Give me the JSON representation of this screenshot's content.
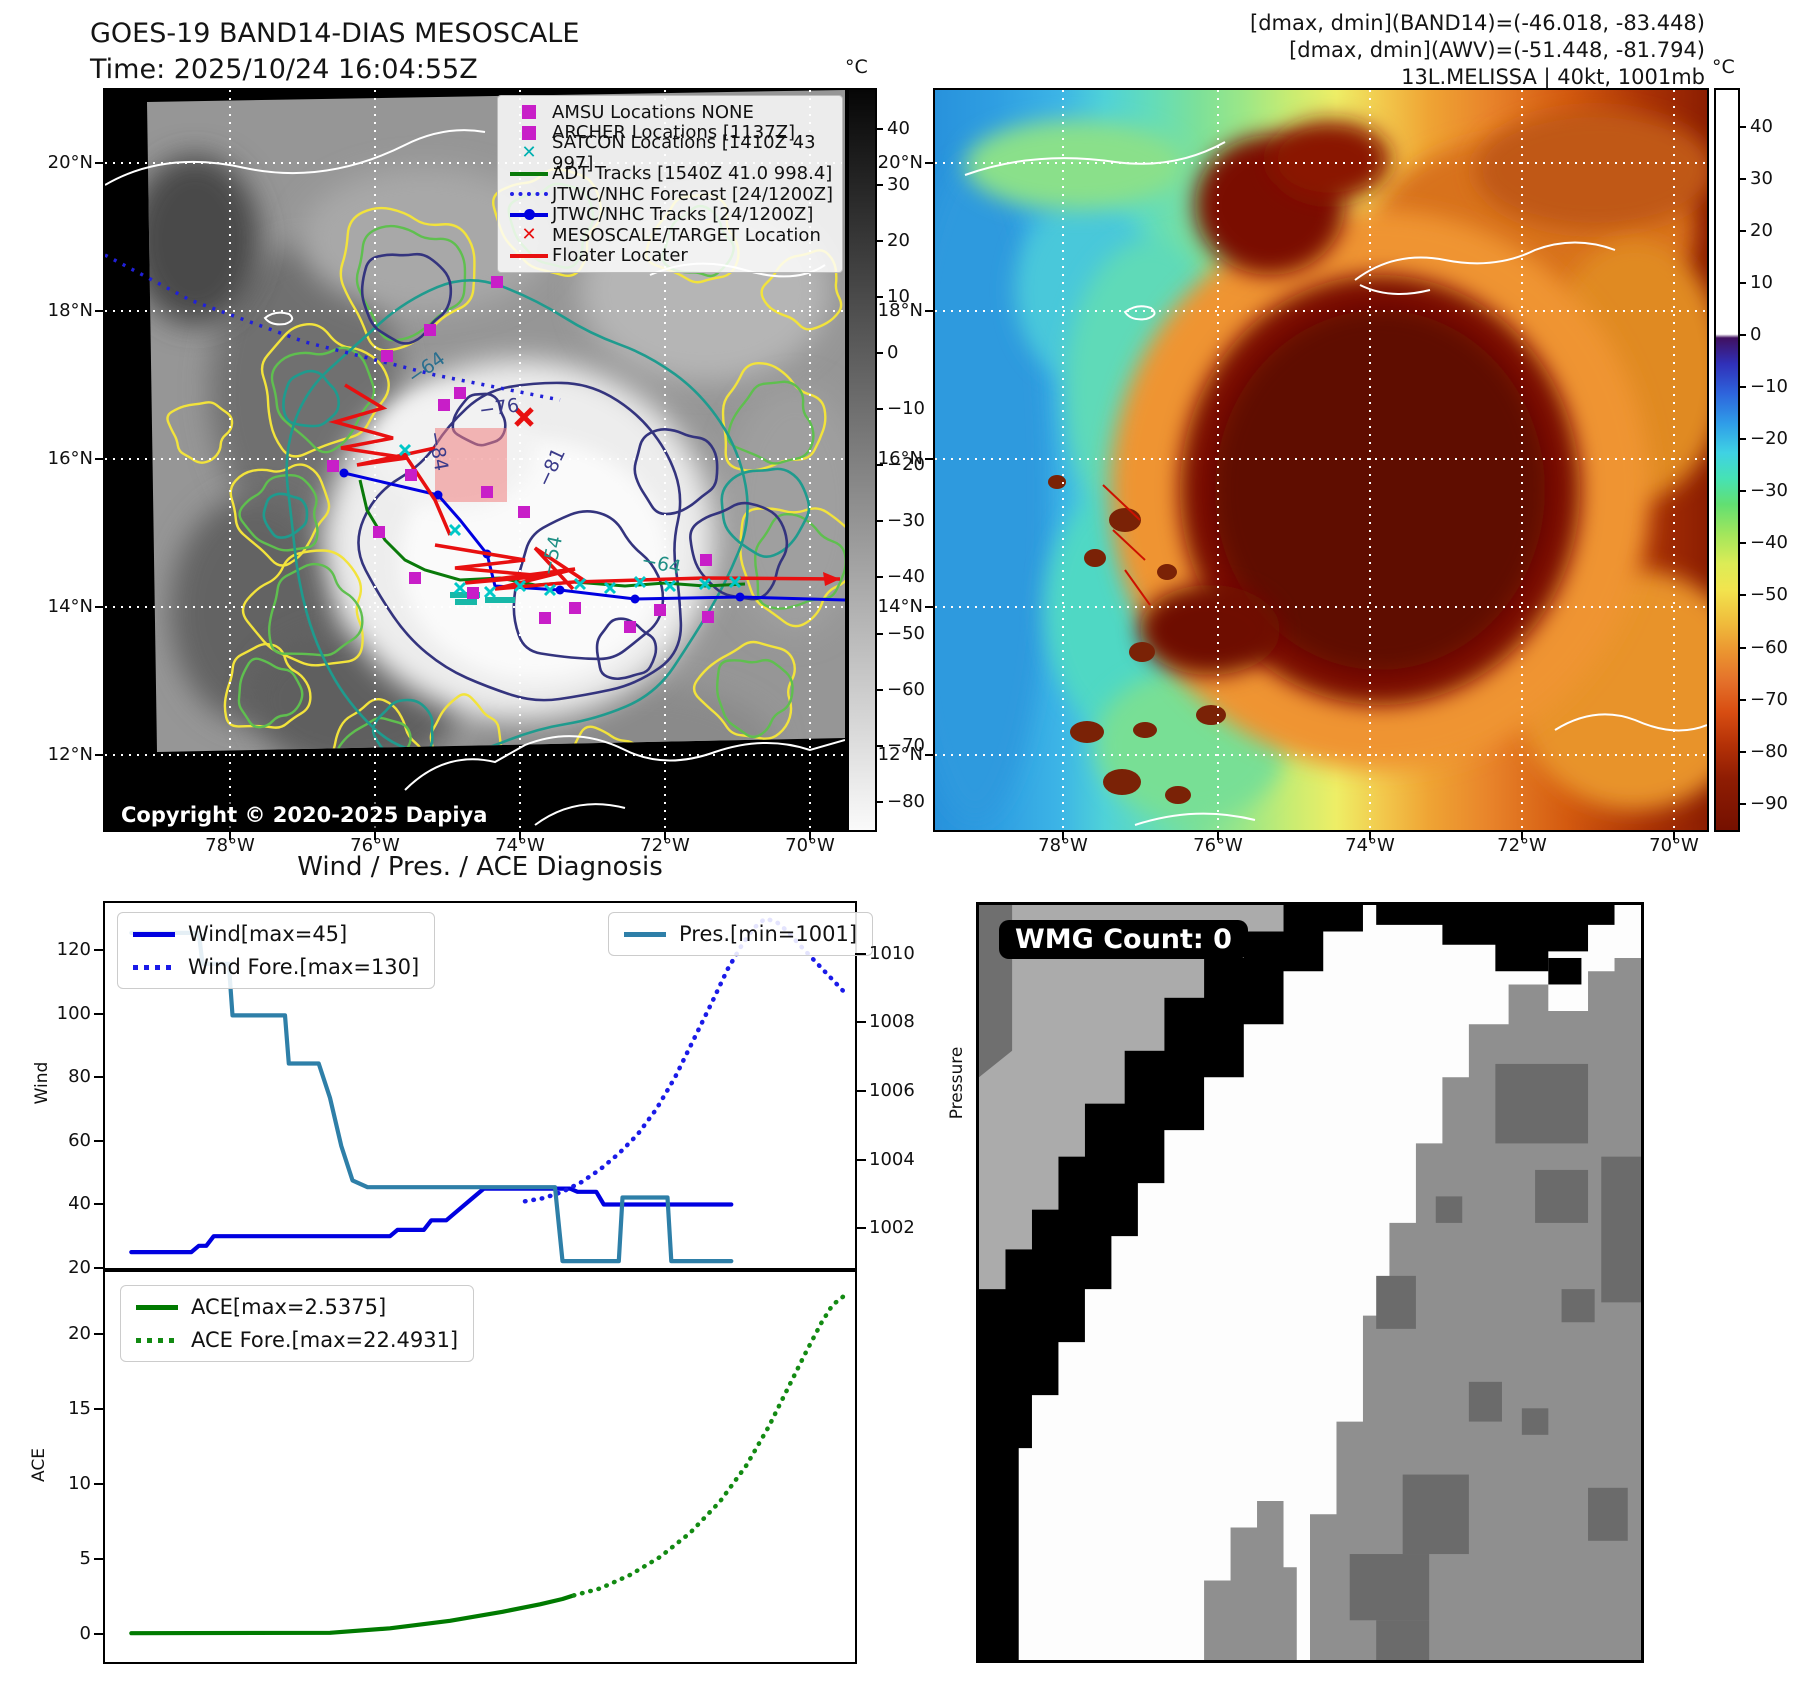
{
  "header": {
    "title_line1": "GOES-19 BAND14-DIAS MESOSCALE",
    "title_line2": "Time: 2025/10/24 16:04:55Z",
    "info_line1": "[dmax, dmin](BAND14)=(-46.018, -83.448)",
    "info_line2": "[dmax, dmin](AWV)=(-51.448, -81.794)",
    "info_line3": "13L.MELISSA | 40kt, 1001mb"
  },
  "band14": {
    "legend": [
      {
        "label": "AMSU Locations NONE",
        "marker": "square",
        "color": "#c81ec8"
      },
      {
        "label": "ARCHER Locations [1137Z]",
        "marker": "square",
        "color": "#c81ec8"
      },
      {
        "label": "SATCON Locations [1410Z 43 997]",
        "marker": "x",
        "color": "#00b0b0"
      },
      {
        "label": "ADT Tracks [1540Z 41.0 998.4]",
        "marker": "line",
        "color": "#0a7a0a"
      },
      {
        "label": "JTWC/NHC Forecast [24/1200Z]",
        "marker": "dotted-line",
        "color": "#2222e6"
      },
      {
        "label": "JTWC/NHC Tracks [24/1200Z]",
        "marker": "line-dot",
        "color": "#0000e0"
      },
      {
        "label": "MESOSCALE/TARGET Location",
        "marker": "x",
        "color": "#e81010"
      },
      {
        "label": "Floater Locater",
        "marker": "line",
        "color": "#e81010"
      }
    ],
    "copyright": "Copyright © 2020-2025 Dapiya",
    "lat_ticks": [
      "20°N",
      "18°N",
      "16°N",
      "14°N",
      "12°N"
    ],
    "lon_ticks": [
      "78°W",
      "76°W",
      "74°W",
      "72°W",
      "70°W"
    ],
    "colorbar_unit": "°C",
    "colorbar_ticks": [
      "40",
      "30",
      "20",
      "10",
      "0",
      "−10",
      "−20",
      "−30",
      "−40",
      "−50",
      "−60",
      "−70",
      "−80"
    ],
    "contour_labels": [
      "−64",
      "−76",
      "−81",
      "−84",
      "−54",
      "−64"
    ]
  },
  "awv": {
    "lat_ticks": [
      "20°N",
      "18°N",
      "16°N",
      "14°N",
      "12°N"
    ],
    "lon_ticks": [
      "78°W",
      "76°W",
      "74°W",
      "72°W",
      "70°W"
    ],
    "colorbar_unit": "°C",
    "colorbar_ticks": [
      "40",
      "30",
      "20",
      "10",
      "0",
      "−10",
      "−20",
      "−30",
      "−40",
      "−50",
      "−60",
      "−70",
      "−80",
      "−90"
    ]
  },
  "wmg": {
    "count_label": "WMG Count: 0"
  },
  "chart_data": [
    {
      "type": "line",
      "title": "Wind / Pres. / ACE Diagnosis",
      "ylabel_left": "Wind",
      "ylabel_right": "Pressure",
      "y_left_ticks": [
        20,
        40,
        60,
        80,
        100,
        120
      ],
      "y_left_lim": [
        20,
        134.9
      ],
      "y_right_ticks": [
        1002,
        1004,
        1006,
        1008,
        1010
      ],
      "y_right_lim": [
        1000.85,
        1011.47
      ],
      "grid": false,
      "legend_position": "upper left and upper right",
      "series": [
        {
          "name": "Wind[max=45]",
          "axis": "left",
          "color": "#0000e0",
          "dash": "solid",
          "points": [
            [
              0.035,
              25
            ],
            [
              0.115,
              25
            ],
            [
              0.125,
              27
            ],
            [
              0.135,
              27
            ],
            [
              0.145,
              30
            ],
            [
              0.38,
              30
            ],
            [
              0.39,
              32
            ],
            [
              0.425,
              32
            ],
            [
              0.435,
              35
            ],
            [
              0.455,
              35
            ],
            [
              0.47,
              38
            ],
            [
              0.49,
              42
            ],
            [
              0.505,
              45
            ],
            [
              0.62,
              45
            ],
            [
              0.63,
              44
            ],
            [
              0.655,
              44
            ],
            [
              0.665,
              40
            ],
            [
              0.835,
              40
            ]
          ]
        },
        {
          "name": "Wind Fore.[max=130]",
          "axis": "left",
          "color": "#1a1ae8",
          "dash": "dotted",
          "points": [
            [
              0.56,
              41
            ],
            [
              0.585,
              42
            ],
            [
              0.61,
              44
            ],
            [
              0.635,
              47
            ],
            [
              0.66,
              51
            ],
            [
              0.685,
              56
            ],
            [
              0.71,
              62
            ],
            [
              0.735,
              70
            ],
            [
              0.76,
              80
            ],
            [
              0.785,
              92
            ],
            [
              0.81,
              104
            ],
            [
              0.83,
              114
            ],
            [
              0.85,
              122
            ],
            [
              0.865,
              127
            ],
            [
              0.88,
              130
            ],
            [
              0.895,
              129
            ],
            [
              0.91,
              126
            ],
            [
              0.925,
              122
            ],
            [
              0.945,
              117
            ],
            [
              0.965,
              112
            ],
            [
              0.985,
              107
            ]
          ]
        },
        {
          "name": "Pres.[min=1001]",
          "axis": "right",
          "color": "#2e7fa8",
          "dash": "solid",
          "points": [
            [
              0.035,
              1010.6
            ],
            [
              0.125,
              1010.6
            ],
            [
              0.13,
              1009.7
            ],
            [
              0.165,
              1009.7
            ],
            [
              0.17,
              1008.2
            ],
            [
              0.24,
              1008.2
            ],
            [
              0.245,
              1006.8
            ],
            [
              0.285,
              1006.8
            ],
            [
              0.3,
              1005.8
            ],
            [
              0.315,
              1004.4
            ],
            [
              0.33,
              1003.4
            ],
            [
              0.35,
              1003.2
            ],
            [
              0.6,
              1003.2
            ],
            [
              0.61,
              1001.05
            ],
            [
              0.685,
              1001.05
            ],
            [
              0.69,
              1002.9
            ],
            [
              0.75,
              1002.9
            ],
            [
              0.755,
              1001.05
            ],
            [
              0.835,
              1001.05
            ]
          ]
        }
      ]
    },
    {
      "type": "line",
      "title": "",
      "ylabel_left": "ACE",
      "y_left_ticks": [
        0,
        5,
        10,
        15,
        20
      ],
      "y_left_lim": [
        -1.9,
        24.1
      ],
      "grid": false,
      "legend_position": "upper left",
      "series": [
        {
          "name": "ACE[max=2.5375]",
          "axis": "left",
          "color": "#007a00",
          "dash": "solid",
          "points": [
            [
              0.035,
              0.02
            ],
            [
              0.3,
              0.05
            ],
            [
              0.38,
              0.35
            ],
            [
              0.46,
              0.85
            ],
            [
              0.53,
              1.45
            ],
            [
              0.58,
              1.95
            ],
            [
              0.61,
              2.3
            ],
            [
              0.625,
              2.5375
            ]
          ]
        },
        {
          "name": "ACE Fore.[max=22.4931]",
          "axis": "left",
          "color": "#128a12",
          "dash": "dotted",
          "points": [
            [
              0.625,
              2.5375
            ],
            [
              0.66,
              3.0
            ],
            [
              0.7,
              3.9
            ],
            [
              0.74,
              5.1
            ],
            [
              0.78,
              6.7
            ],
            [
              0.82,
              8.8
            ],
            [
              0.855,
              11.2
            ],
            [
              0.885,
              13.8
            ],
            [
              0.91,
              16.3
            ],
            [
              0.935,
              18.8
            ],
            [
              0.955,
              20.7
            ],
            [
              0.97,
              21.9
            ],
            [
              0.985,
              22.4931
            ]
          ]
        }
      ]
    }
  ]
}
